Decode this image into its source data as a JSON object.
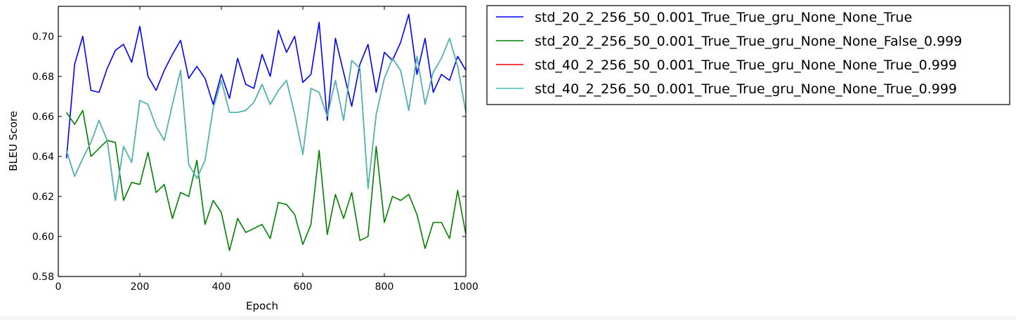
{
  "chart_data": {
    "type": "line",
    "title": "",
    "xlabel": "Epoch",
    "ylabel": "BLEU Score",
    "xlim": [
      0,
      1000
    ],
    "ylim": [
      0.58,
      0.715
    ],
    "xticks": [
      0,
      200,
      400,
      600,
      800,
      1000
    ],
    "yticks": [
      0.58,
      0.6,
      0.62,
      0.64,
      0.66,
      0.68,
      0.7
    ],
    "ytick_labels": [
      "0.58",
      "0.60",
      "0.62",
      "0.64",
      "0.66",
      "0.68",
      "0.70"
    ],
    "grid": false,
    "legend_position": "outside-right",
    "x": [
      20,
      40,
      60,
      80,
      100,
      120,
      140,
      160,
      180,
      200,
      220,
      240,
      260,
      280,
      300,
      320,
      340,
      360,
      380,
      400,
      420,
      440,
      460,
      480,
      500,
      520,
      540,
      560,
      580,
      600,
      620,
      640,
      660,
      680,
      700,
      720,
      740,
      760,
      780,
      800,
      820,
      840,
      860,
      880,
      900,
      920,
      940,
      960,
      980,
      1000
    ],
    "series": [
      {
        "name": "std_20_2_256_50_0.001_True_True_gru_None_None_True",
        "color": "#0000ff",
        "values": [
          0.639,
          0.686,
          0.7,
          0.673,
          0.672,
          0.684,
          0.693,
          0.696,
          0.687,
          0.705,
          0.68,
          0.673,
          0.683,
          0.691,
          0.698,
          0.679,
          0.685,
          0.679,
          0.666,
          0.681,
          0.669,
          0.689,
          0.676,
          0.674,
          0.691,
          0.68,
          0.703,
          0.692,
          0.7,
          0.677,
          0.681,
          0.707,
          0.658,
          0.699,
          0.682,
          0.665,
          0.686,
          0.696,
          0.672,
          0.692,
          0.688,
          0.697,
          0.711,
          0.681,
          0.699,
          0.672,
          0.681,
          0.678,
          0.69,
          0.683
        ]
      },
      {
        "name": "std_20_2_256_50_0.001_True_True_gru_None_None_False_0.999",
        "color": "#008000",
        "values": [
          0.662,
          0.656,
          0.663,
          0.64,
          0.644,
          0.648,
          0.647,
          0.618,
          0.627,
          0.626,
          0.642,
          0.622,
          0.626,
          0.609,
          0.622,
          0.62,
          0.638,
          0.606,
          0.618,
          0.612,
          0.593,
          0.609,
          0.602,
          0.604,
          0.606,
          0.599,
          0.617,
          0.616,
          0.611,
          0.596,
          0.606,
          0.643,
          0.601,
          0.621,
          0.609,
          0.622,
          0.598,
          0.6,
          0.645,
          0.607,
          0.62,
          0.618,
          0.621,
          0.611,
          0.594,
          0.607,
          0.607,
          0.599,
          0.623,
          0.601
        ]
      },
      {
        "name": "std_40_2_256_50_0.001_True_True_gru_None_None_True_0.999",
        "color": "#ff0000",
        "values": [
          0.643,
          0.63,
          0.639,
          0.647,
          0.658,
          0.648,
          0.618,
          0.645,
          0.637,
          0.668,
          0.666,
          0.655,
          0.648,
          0.666,
          0.683,
          0.636,
          0.629,
          0.638,
          0.664,
          0.678,
          0.662,
          0.662,
          0.663,
          0.667,
          0.676,
          0.666,
          0.673,
          0.678,
          0.661,
          0.641,
          0.674,
          0.672,
          0.66,
          0.678,
          0.658,
          0.688,
          0.684,
          0.624,
          0.661,
          0.679,
          0.689,
          0.683,
          0.663,
          0.69,
          0.666,
          0.682,
          0.689,
          0.699,
          0.685,
          0.662
        ]
      },
      {
        "name": "std_40_2_256_50_0.001_True_True_gru_None_None_True_0.999",
        "color": "#40bfbf",
        "values": [
          0.643,
          0.63,
          0.639,
          0.647,
          0.658,
          0.648,
          0.618,
          0.645,
          0.637,
          0.668,
          0.666,
          0.655,
          0.648,
          0.666,
          0.683,
          0.636,
          0.629,
          0.638,
          0.664,
          0.678,
          0.662,
          0.662,
          0.663,
          0.667,
          0.676,
          0.666,
          0.673,
          0.678,
          0.661,
          0.641,
          0.674,
          0.672,
          0.66,
          0.678,
          0.658,
          0.688,
          0.684,
          0.624,
          0.661,
          0.679,
          0.689,
          0.683,
          0.663,
          0.69,
          0.666,
          0.682,
          0.689,
          0.699,
          0.685,
          0.662
        ]
      }
    ]
  }
}
